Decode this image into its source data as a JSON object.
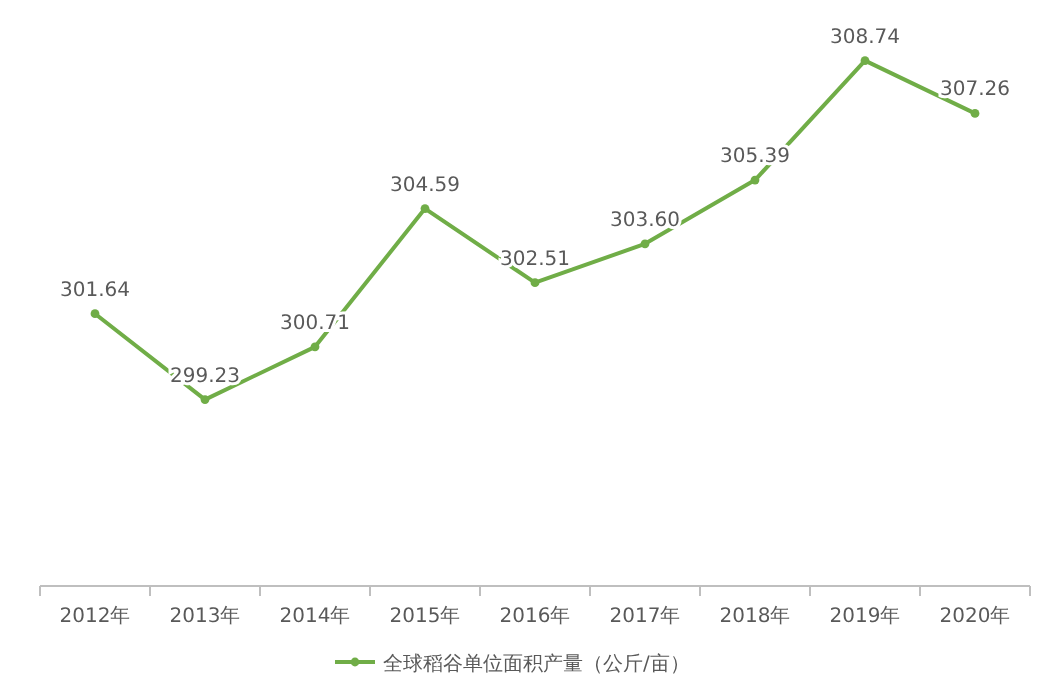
{
  "chart_data": {
    "type": "line",
    "categories": [
      "2012年",
      "2013年",
      "2014年",
      "2015年",
      "2016年",
      "2017年",
      "2018年",
      "2019年",
      "2020年"
    ],
    "series": [
      {
        "name": "全球稻谷单位面积产量（公斤/亩）",
        "color": "#70ad47",
        "values": [
          301.64,
          299.23,
          300.71,
          304.59,
          302.51,
          303.6,
          305.39,
          308.74,
          307.26
        ],
        "value_labels": [
          "301.64",
          "299.23",
          "300.71",
          "304.59",
          "302.51",
          "303.60",
          "305.39",
          "308.74",
          "307.26"
        ]
      }
    ],
    "tick_labels": "x",
    "legend": "bottom",
    "marker": "circle"
  }
}
